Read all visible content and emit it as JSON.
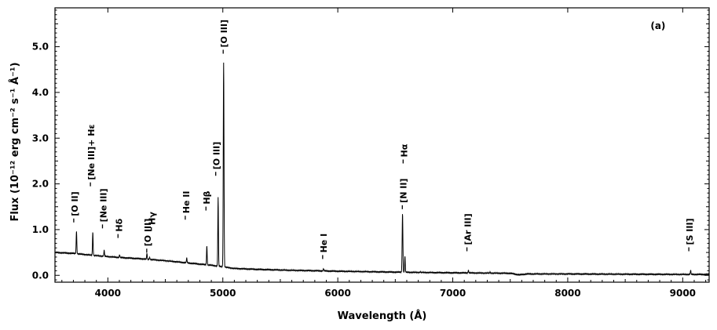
{
  "chart_data": {
    "type": "line",
    "title": "",
    "panel_label": "(a)",
    "xlabel": "Wavelength (Å)",
    "ylabel": "Flux (10⁻¹² erg cm⁻² s⁻¹ Å⁻¹)",
    "xlim": [
      3540,
      9230
    ],
    "ylim": [
      -0.15,
      5.85
    ],
    "x_ticks": [
      4000,
      5000,
      6000,
      7000,
      8000,
      9000
    ],
    "x_tick_labels": [
      "4000",
      "5000",
      "6000",
      "7000",
      "8000",
      "9000"
    ],
    "y_ticks": [
      0.0,
      1.0,
      2.0,
      3.0,
      4.0,
      5.0
    ],
    "y_tick_labels": [
      "0.0",
      "1.0",
      "2.0",
      "3.0",
      "4.0",
      "5.0"
    ],
    "grid": false,
    "line_color": "#000000",
    "continuum": [
      {
        "x": 3540,
        "y": 0.5
      },
      {
        "x": 3700,
        "y": 0.48
      },
      {
        "x": 3900,
        "y": 0.43
      },
      {
        "x": 4100,
        "y": 0.39
      },
      {
        "x": 4300,
        "y": 0.36
      },
      {
        "x": 4500,
        "y": 0.32
      },
      {
        "x": 4700,
        "y": 0.27
      },
      {
        "x": 4900,
        "y": 0.22
      },
      {
        "x": 5100,
        "y": 0.15
      },
      {
        "x": 5300,
        "y": 0.13
      },
      {
        "x": 5600,
        "y": 0.11
      },
      {
        "x": 6000,
        "y": 0.09
      },
      {
        "x": 6500,
        "y": 0.07
      },
      {
        "x": 7000,
        "y": 0.055
      },
      {
        "x": 7500,
        "y": 0.045
      },
      {
        "x": 7580,
        "y": 0.01
      },
      {
        "x": 7640,
        "y": 0.03
      },
      {
        "x": 8000,
        "y": 0.03
      },
      {
        "x": 8500,
        "y": 0.025
      },
      {
        "x": 9000,
        "y": 0.02
      },
      {
        "x": 9230,
        "y": 0.02
      }
    ],
    "lines": [
      {
        "name": "[O II]",
        "x": 3727,
        "peak": 0.97,
        "width": 6
      },
      {
        "name": "[Ne III]+ Hε",
        "x": 3869,
        "peak": 0.94,
        "width": 6
      },
      {
        "name": "[Ne III]",
        "x": 3968,
        "peak": 0.55,
        "width": 6
      },
      {
        "name": "Hδ",
        "x": 4102,
        "peak": 0.45,
        "width": 6
      },
      {
        "name": "Hγ",
        "x": 4340,
        "peak": 0.48,
        "width": 6
      },
      {
        "name": "[O III]",
        "x": 4363,
        "peak": 0.39,
        "width": 6
      },
      {
        "name": "He II",
        "x": 4686,
        "peak": 0.38,
        "width": 6
      },
      {
        "name": "Hβ",
        "x": 4861,
        "peak": 0.64,
        "width": 6
      },
      {
        "name": "[O III]",
        "x": 4959,
        "peak": 1.7,
        "width": 6
      },
      {
        "name": "[O III]",
        "x": 5007,
        "peak": 4.65,
        "width": 7
      },
      {
        "name": "He I",
        "x": 5876,
        "peak": 0.14,
        "width": 7
      },
      {
        "name": "Hα",
        "x": 6563,
        "peak": 1.35,
        "width": 7
      },
      {
        "name": "[N II]",
        "x": 6584,
        "peak": 0.42,
        "width": 6
      },
      {
        "name": "",
        "x": 6717,
        "peak": 0.08,
        "width": 6
      },
      {
        "name": "[Ar III]",
        "x": 7136,
        "peak": 0.11,
        "width": 6
      },
      {
        "name": "",
        "x": 7325,
        "peak": 0.07,
        "width": 6
      },
      {
        "name": "[S III]",
        "x": 9069,
        "peak": 0.11,
        "width": 6
      }
    ],
    "annotations": [
      {
        "text": "[O II]",
        "x": 3710,
        "y": 1.26
      },
      {
        "text": "[Ne III]+ Hε",
        "x": 3855,
        "y": 2.05
      },
      {
        "text": "[Ne III]",
        "x": 3960,
        "y": 1.13
      },
      {
        "text": "Hδ",
        "x": 4095,
        "y": 0.92
      },
      {
        "text": "[O III]",
        "x": 4345,
        "y": 0.6
      },
      {
        "text": "Hγ",
        "x": 4385,
        "y": 1.07
      },
      {
        "text": "He II",
        "x": 4680,
        "y": 1.32
      },
      {
        "text": "Hβ",
        "x": 4860,
        "y": 1.52
      },
      {
        "text": "[O III]",
        "x": 4945,
        "y": 2.28
      },
      {
        "text": "[O III]",
        "x": 5010,
        "y": 4.95
      },
      {
        "text": "He I",
        "x": 5875,
        "y": 0.46
      },
      {
        "text": "[N II]",
        "x": 6568,
        "y": 1.55
      },
      {
        "text": "Hα",
        "x": 6575,
        "y": 2.55
      },
      {
        "text": "[Ar III]",
        "x": 7130,
        "y": 0.63
      },
      {
        "text": "[S III]",
        "x": 9060,
        "y": 0.63
      }
    ]
  }
}
